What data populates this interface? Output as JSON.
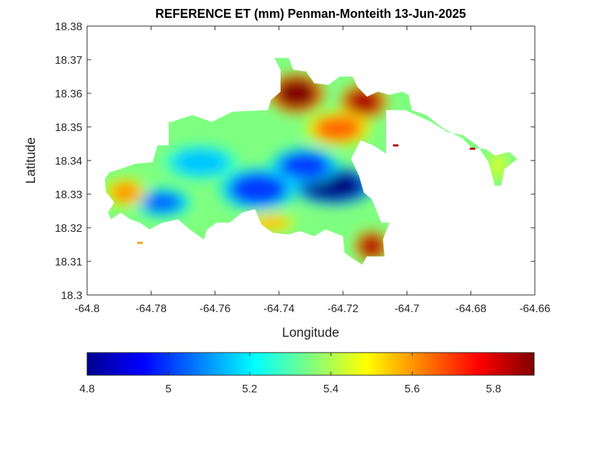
{
  "chart_data": {
    "type": "heatmap",
    "title": "REFERENCE ET (mm) Penman-Monteith 13-Jun-2025",
    "xlabel": "Longitude",
    "ylabel": "Latitude",
    "xlim": [
      -64.8,
      -64.66
    ],
    "ylim": [
      18.3,
      18.38
    ],
    "xticks": [
      "-64.8",
      "-64.78",
      "-64.76",
      "-64.74",
      "-64.72",
      "-64.7",
      "-64.68",
      "-64.66"
    ],
    "yticks": [
      "18.3",
      "18.31",
      "18.32",
      "18.33",
      "18.34",
      "18.35",
      "18.36",
      "18.37",
      "18.38"
    ],
    "colormap": "jet",
    "colorbar": {
      "location": "bottom",
      "clim": [
        4.8,
        5.9
      ],
      "ticks": [
        "4.8",
        "5",
        "5.2",
        "5.4",
        "5.6",
        "5.8"
      ]
    },
    "grid": false,
    "field": {
      "outline": [
        [
          -64.793,
          18.3365
        ],
        [
          -64.7895,
          18.3375
        ],
        [
          -64.785,
          18.339
        ],
        [
          -64.7795,
          18.3395
        ],
        [
          -64.778,
          18.3445
        ],
        [
          -64.7745,
          18.3445
        ],
        [
          -64.7745,
          18.3515
        ],
        [
          -64.7735,
          18.3515
        ],
        [
          -64.7705,
          18.3525
        ],
        [
          -64.767,
          18.3535
        ],
        [
          -64.761,
          18.3515
        ],
        [
          -64.7545,
          18.3545
        ],
        [
          -64.7435,
          18.355
        ],
        [
          -64.7425,
          18.358
        ],
        [
          -64.7395,
          18.3605
        ],
        [
          -64.7395,
          18.367
        ],
        [
          -64.7415,
          18.3705
        ],
        [
          -64.737,
          18.3705
        ],
        [
          -64.7355,
          18.367
        ],
        [
          -64.7315,
          18.3665
        ],
        [
          -64.729,
          18.363
        ],
        [
          -64.7245,
          18.3625
        ],
        [
          -64.721,
          18.365
        ],
        [
          -64.717,
          18.365
        ],
        [
          -64.7155,
          18.362
        ],
        [
          -64.7125,
          18.359
        ],
        [
          -64.709,
          18.3605
        ],
        [
          -64.7055,
          18.3595
        ],
        [
          -64.7015,
          18.3605
        ],
        [
          -64.6995,
          18.3595
        ],
        [
          -64.6985,
          18.355
        ],
        [
          -64.694,
          18.3535
        ],
        [
          -64.6885,
          18.3495
        ],
        [
          -64.6825,
          18.3465
        ],
        [
          -64.6795,
          18.3435
        ],
        [
          -64.6755,
          18.3435
        ],
        [
          -64.6725,
          18.3415
        ],
        [
          -64.668,
          18.3425
        ],
        [
          -64.6655,
          18.3405
        ],
        [
          -64.6695,
          18.3375
        ],
        [
          -64.6705,
          18.3325
        ],
        [
          -64.6725,
          18.3325
        ],
        [
          -64.6745,
          18.3395
        ],
        [
          -64.678,
          18.3445
        ],
        [
          -64.6825,
          18.3475
        ],
        [
          -64.6875,
          18.3485
        ],
        [
          -64.6925,
          18.3515
        ],
        [
          -64.7005,
          18.355
        ],
        [
          -64.7065,
          18.355
        ],
        [
          -64.7065,
          18.342
        ],
        [
          -64.7105,
          18.3445
        ],
        [
          -64.7145,
          18.346
        ],
        [
          -64.7175,
          18.3405
        ],
        [
          -64.715,
          18.3355
        ],
        [
          -64.7135,
          18.3305
        ],
        [
          -64.711,
          18.3285
        ],
        [
          -64.708,
          18.3215
        ],
        [
          -64.7055,
          18.3215
        ],
        [
          -64.7075,
          18.3165
        ],
        [
          -64.707,
          18.3115
        ],
        [
          -64.7125,
          18.3115
        ],
        [
          -64.714,
          18.309
        ],
        [
          -64.7195,
          18.3125
        ],
        [
          -64.72,
          18.3175
        ],
        [
          -64.7255,
          18.3195
        ],
        [
          -64.729,
          18.3175
        ],
        [
          -64.7335,
          18.319
        ],
        [
          -64.737,
          18.318
        ],
        [
          -64.742,
          18.3185
        ],
        [
          -64.7455,
          18.321
        ],
        [
          -64.7475,
          18.3255
        ],
        [
          -64.7515,
          18.3245
        ],
        [
          -64.7555,
          18.3215
        ],
        [
          -64.7595,
          18.3215
        ],
        [
          -64.7625,
          18.3195
        ],
        [
          -64.7635,
          18.3165
        ],
        [
          -64.768,
          18.3195
        ],
        [
          -64.7715,
          18.3225
        ],
        [
          -64.7765,
          18.3215
        ],
        [
          -64.7805,
          18.3195
        ],
        [
          -64.7835,
          18.3215
        ],
        [
          -64.7865,
          18.3225
        ],
        [
          -64.7895,
          18.3245
        ],
        [
          -64.7925,
          18.3225
        ],
        [
          -64.7935,
          18.3245
        ],
        [
          -64.7915,
          18.3275
        ],
        [
          -64.794,
          18.3305
        ],
        [
          -64.7945,
          18.3345
        ]
      ],
      "islets": [
        {
          "lon": -64.7835,
          "lat": 18.3155,
          "value": 5.6
        },
        {
          "lon": -64.7035,
          "lat": 18.3445,
          "value": 5.85
        },
        {
          "lon": -64.6795,
          "lat": 18.3435,
          "value": 5.85
        }
      ],
      "hotspots": [
        {
          "lon": -64.723,
          "lat": 18.3325,
          "value": 4.8,
          "rx": 0.0095,
          "ry": 0.0042
        },
        {
          "lon": -64.7465,
          "lat": 18.3315,
          "value": 5.0,
          "rx": 0.009,
          "ry": 0.0048
        },
        {
          "lon": -64.7765,
          "lat": 18.3275,
          "value": 5.05,
          "rx": 0.0065,
          "ry": 0.0032
        },
        {
          "lon": -64.7645,
          "lat": 18.3395,
          "value": 5.15,
          "rx": 0.0085,
          "ry": 0.0038
        },
        {
          "lon": -64.732,
          "lat": 18.3385,
          "value": 5.0,
          "rx": 0.008,
          "ry": 0.004
        },
        {
          "lon": -64.788,
          "lat": 18.3305,
          "value": 5.6,
          "rx": 0.0048,
          "ry": 0.0032
        },
        {
          "lon": -64.7345,
          "lat": 18.36,
          "value": 5.9,
          "rx": 0.0065,
          "ry": 0.0045
        },
        {
          "lon": -64.7135,
          "lat": 18.3575,
          "value": 5.85,
          "rx": 0.0055,
          "ry": 0.004
        },
        {
          "lon": -64.711,
          "lat": 18.3145,
          "value": 5.85,
          "rx": 0.004,
          "ry": 0.0035
        },
        {
          "lon": -64.7215,
          "lat": 18.3495,
          "value": 5.65,
          "rx": 0.0075,
          "ry": 0.0038
        },
        {
          "lon": -64.7425,
          "lat": 18.3215,
          "value": 5.55,
          "rx": 0.0055,
          "ry": 0.0022
        },
        {
          "lon": -64.6715,
          "lat": 18.3385,
          "value": 5.45,
          "rx": 0.0022,
          "ry": 0.0035
        }
      ],
      "base_value": 5.35
    }
  }
}
